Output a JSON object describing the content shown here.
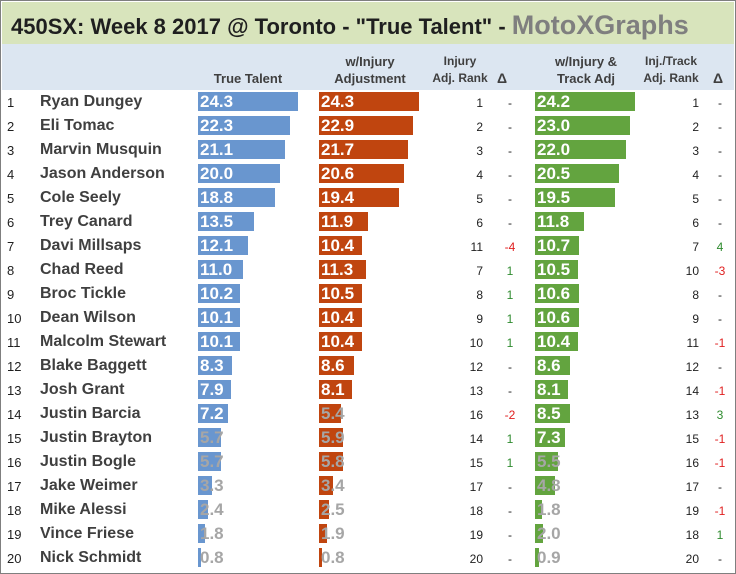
{
  "title": "450SX: Week 8 2017 @ Toronto - \"True Talent\" - ",
  "brand": "MotoXGraphs",
  "colors": {
    "true_talent": "#6996cf",
    "injury_adj": "#c0450f",
    "track_adj": "#63a43f",
    "title_bg": "#d8e4bc",
    "header_bg": "#dce6f1"
  },
  "headers": {
    "true_talent": "True Talent",
    "injury_adj_1": "w/Injury",
    "injury_adj_2": "Adjustment",
    "injury_rank_1": "Injury",
    "injury_rank_2": "Adj. Rank",
    "delta1": "Δ",
    "track_adj_1": "w/Injury &",
    "track_adj_2": "Track Adj",
    "track_rank_1": "Inj./Track",
    "track_rank_2": "Adj. Rank",
    "delta2": "Δ"
  },
  "chart_data": {
    "type": "table",
    "bar_max": 24.3,
    "rows": [
      {
        "rank": "1",
        "name": "Ryan Dungey",
        "true_talent": 24.3,
        "injury_adj": 24.3,
        "injury_rank": "1",
        "delta1": "-",
        "track_adj": 24.2,
        "track_rank": "1",
        "delta2": "-"
      },
      {
        "rank": "2",
        "name": "Eli Tomac",
        "true_talent": 22.3,
        "injury_adj": 22.9,
        "injury_rank": "2",
        "delta1": "-",
        "track_adj": 23.0,
        "track_rank": "2",
        "delta2": "-"
      },
      {
        "rank": "3",
        "name": "Marvin Musquin",
        "true_talent": 21.1,
        "injury_adj": 21.7,
        "injury_rank": "3",
        "delta1": "-",
        "track_adj": 22.0,
        "track_rank": "3",
        "delta2": "-"
      },
      {
        "rank": "4",
        "name": "Jason Anderson",
        "true_talent": 20.0,
        "injury_adj": 20.6,
        "injury_rank": "4",
        "delta1": "-",
        "track_adj": 20.5,
        "track_rank": "4",
        "delta2": "-"
      },
      {
        "rank": "5",
        "name": "Cole Seely",
        "true_talent": 18.8,
        "injury_adj": 19.4,
        "injury_rank": "5",
        "delta1": "-",
        "track_adj": 19.5,
        "track_rank": "5",
        "delta2": "-"
      },
      {
        "rank": "6",
        "name": "Trey Canard",
        "true_talent": 13.5,
        "injury_adj": 11.9,
        "injury_rank": "6",
        "delta1": "-",
        "track_adj": 11.8,
        "track_rank": "6",
        "delta2": "-"
      },
      {
        "rank": "7",
        "name": "Davi Millsaps",
        "true_talent": 12.1,
        "injury_adj": 10.4,
        "injury_rank": "11",
        "delta1": "-4",
        "track_adj": 10.7,
        "track_rank": "7",
        "delta2": "4"
      },
      {
        "rank": "8",
        "name": "Chad Reed",
        "true_talent": 11.0,
        "injury_adj": 11.3,
        "injury_rank": "7",
        "delta1": "1",
        "track_adj": 10.5,
        "track_rank": "10",
        "delta2": "-3"
      },
      {
        "rank": "9",
        "name": "Broc Tickle",
        "true_talent": 10.2,
        "injury_adj": 10.5,
        "injury_rank": "8",
        "delta1": "1",
        "track_adj": 10.6,
        "track_rank": "8",
        "delta2": "-"
      },
      {
        "rank": "10",
        "name": "Dean Wilson",
        "true_talent": 10.1,
        "injury_adj": 10.4,
        "injury_rank": "9",
        "delta1": "1",
        "track_adj": 10.6,
        "track_rank": "9",
        "delta2": "-"
      },
      {
        "rank": "11",
        "name": "Malcolm Stewart",
        "true_talent": 10.1,
        "injury_adj": 10.4,
        "injury_rank": "10",
        "delta1": "1",
        "track_adj": 10.4,
        "track_rank": "11",
        "delta2": "-1"
      },
      {
        "rank": "12",
        "name": "Blake Baggett",
        "true_talent": 8.3,
        "injury_adj": 8.6,
        "injury_rank": "12",
        "delta1": "-",
        "track_adj": 8.6,
        "track_rank": "12",
        "delta2": "-"
      },
      {
        "rank": "13",
        "name": "Josh Grant",
        "true_talent": 7.9,
        "injury_adj": 8.1,
        "injury_rank": "13",
        "delta1": "-",
        "track_adj": 8.1,
        "track_rank": "14",
        "delta2": "-1"
      },
      {
        "rank": "14",
        "name": "Justin Barcia",
        "true_talent": 7.2,
        "injury_adj": 5.4,
        "injury_rank": "16",
        "delta1": "-2",
        "track_adj": 8.5,
        "track_rank": "13",
        "delta2": "3"
      },
      {
        "rank": "15",
        "name": "Justin Brayton",
        "true_talent": 5.7,
        "injury_adj": 5.9,
        "injury_rank": "14",
        "delta1": "1",
        "track_adj": 7.3,
        "track_rank": "15",
        "delta2": "-1"
      },
      {
        "rank": "16",
        "name": "Justin Bogle",
        "true_talent": 5.7,
        "injury_adj": 5.8,
        "injury_rank": "15",
        "delta1": "1",
        "track_adj": 5.5,
        "track_rank": "16",
        "delta2": "-1"
      },
      {
        "rank": "17",
        "name": "Jake Weimer",
        "true_talent": 3.3,
        "injury_adj": 3.4,
        "injury_rank": "17",
        "delta1": "-",
        "track_adj": 4.8,
        "track_rank": "17",
        "delta2": "-"
      },
      {
        "rank": "18",
        "name": "Mike Alessi",
        "true_talent": 2.4,
        "injury_adj": 2.5,
        "injury_rank": "18",
        "delta1": "-",
        "track_adj": 1.8,
        "track_rank": "19",
        "delta2": "-1"
      },
      {
        "rank": "19",
        "name": "Vince Friese",
        "true_talent": 1.8,
        "injury_adj": 1.9,
        "injury_rank": "19",
        "delta1": "-",
        "track_adj": 2.0,
        "track_rank": "18",
        "delta2": "1"
      },
      {
        "rank": "20",
        "name": "Nick Schmidt",
        "true_talent": 0.8,
        "injury_adj": 0.8,
        "injury_rank": "20",
        "delta1": "-",
        "track_adj": 0.9,
        "track_rank": "20",
        "delta2": "-"
      }
    ]
  }
}
